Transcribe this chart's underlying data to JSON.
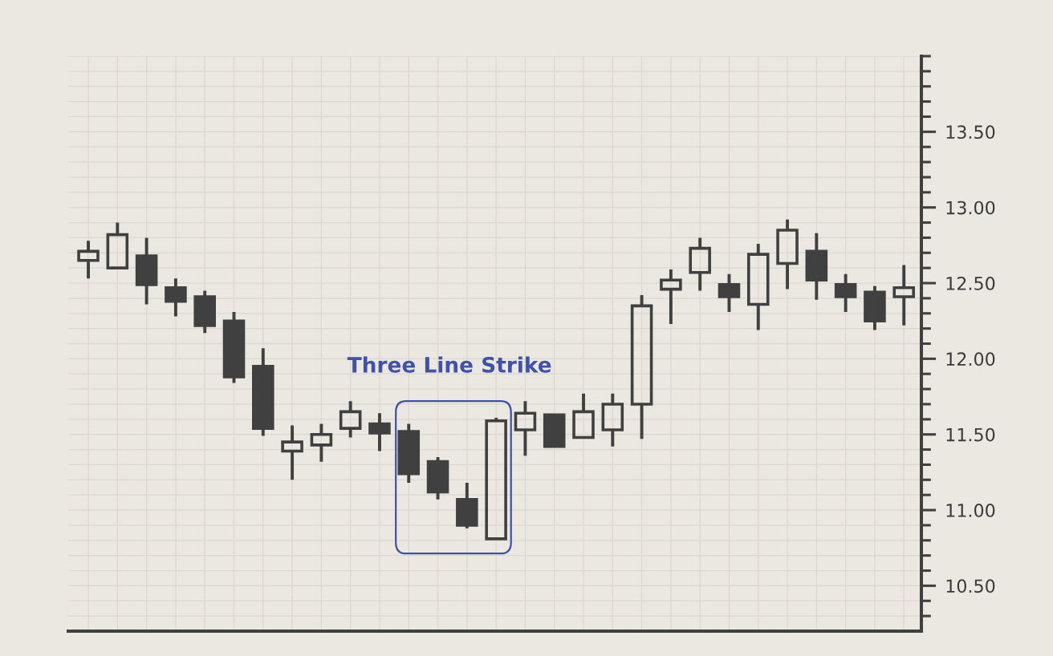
{
  "chart_data": {
    "type": "candlestick",
    "categories": [
      null,
      null,
      null,
      null,
      null,
      null,
      null,
      null,
      null,
      null,
      null,
      null,
      null,
      null,
      null,
      null,
      null,
      null,
      null,
      null,
      null,
      null,
      null,
      null,
      null,
      null,
      null,
      null,
      null
    ],
    "ohlc": [
      [
        12.65,
        12.78,
        12.53,
        12.71
      ],
      [
        12.6,
        12.9,
        12.6,
        12.82
      ],
      [
        12.68,
        12.8,
        12.36,
        12.49
      ],
      [
        12.47,
        12.53,
        12.28,
        12.38
      ],
      [
        12.41,
        12.45,
        12.17,
        12.22
      ],
      [
        12.25,
        12.31,
        11.84,
        11.88
      ],
      [
        11.95,
        12.07,
        11.49,
        11.54
      ],
      [
        11.39,
        11.56,
        11.2,
        11.45
      ],
      [
        11.43,
        11.57,
        11.32,
        11.5
      ],
      [
        11.54,
        11.72,
        11.48,
        11.65
      ],
      [
        11.57,
        11.64,
        11.39,
        11.51
      ],
      [
        11.52,
        11.57,
        11.18,
        11.24
      ],
      [
        11.32,
        11.35,
        11.07,
        11.12
      ],
      [
        11.07,
        11.18,
        10.88,
        10.9
      ],
      [
        10.81,
        11.61,
        10.81,
        11.59
      ],
      [
        11.53,
        11.72,
        11.36,
        11.64
      ],
      [
        11.63,
        11.63,
        11.42,
        11.42
      ],
      [
        11.48,
        11.77,
        11.48,
        11.65
      ],
      [
        11.53,
        11.77,
        11.42,
        11.7
      ],
      [
        11.7,
        12.42,
        11.47,
        12.35
      ],
      [
        12.46,
        12.59,
        12.23,
        12.52
      ],
      [
        12.57,
        12.8,
        12.45,
        12.73
      ],
      [
        12.49,
        12.56,
        12.31,
        12.41
      ],
      [
        12.36,
        12.76,
        12.19,
        12.69
      ],
      [
        12.63,
        12.92,
        12.46,
        12.85
      ],
      [
        12.71,
        12.83,
        12.39,
        12.52
      ],
      [
        12.49,
        12.56,
        12.31,
        12.41
      ],
      [
        12.44,
        12.48,
        12.19,
        12.25
      ],
      [
        12.41,
        12.62,
        12.22,
        12.47
      ]
    ],
    "color": "#404040",
    "ylim": [
      10.2,
      14.0
    ],
    "yticks": [
      {
        "value": 10.3,
        "label": null
      },
      {
        "value": 10.4,
        "label": null
      },
      {
        "value": 10.5,
        "label": "10.50"
      },
      {
        "value": 10.6,
        "label": null
      },
      {
        "value": 10.7,
        "label": null
      },
      {
        "value": 10.8,
        "label": null
      },
      {
        "value": 10.9,
        "label": null
      },
      {
        "value": 11.0,
        "label": "11.00"
      },
      {
        "value": 11.1,
        "label": null
      },
      {
        "value": 11.2,
        "label": null
      },
      {
        "value": 11.3,
        "label": null
      },
      {
        "value": 11.4,
        "label": null
      },
      {
        "value": 11.5,
        "label": "11.50"
      },
      {
        "value": 11.6,
        "label": null
      },
      {
        "value": 11.7,
        "label": null
      },
      {
        "value": 11.8,
        "label": null
      },
      {
        "value": 11.9,
        "label": null
      },
      {
        "value": 12.0,
        "label": "12.00"
      },
      {
        "value": 12.1,
        "label": null
      },
      {
        "value": 12.2,
        "label": null
      },
      {
        "value": 12.3,
        "label": null
      },
      {
        "value": 12.4,
        "label": null
      },
      {
        "value": 12.5,
        "label": "12.50"
      },
      {
        "value": 12.6,
        "label": null
      },
      {
        "value": 12.7,
        "label": null
      },
      {
        "value": 12.8,
        "label": null
      },
      {
        "value": 12.9,
        "label": null
      },
      {
        "value": 13.0,
        "label": "13.00"
      },
      {
        "value": 13.1,
        "label": null
      },
      {
        "value": 13.2,
        "label": null
      },
      {
        "value": 13.3,
        "label": null
      },
      {
        "value": 13.4,
        "label": null
      },
      {
        "value": 13.5,
        "label": "13.50"
      },
      {
        "value": 13.6,
        "label": null
      },
      {
        "value": 13.7,
        "label": null
      },
      {
        "value": 13.8,
        "label": null
      },
      {
        "value": 13.9,
        "label": null
      },
      {
        "value": 14.0,
        "label": null
      }
    ],
    "grid": true,
    "tick_labels": "y",
    "annotations": [
      "Three Line Strike"
    ]
  }
}
